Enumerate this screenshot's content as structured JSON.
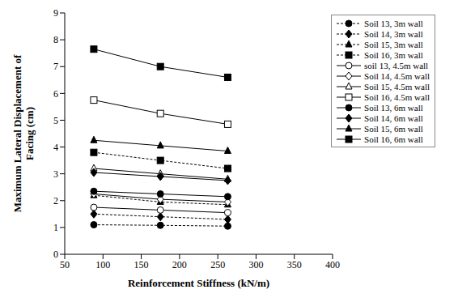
{
  "chart_data": {
    "type": "line",
    "x_label": "Reinforcement Stiffness (kN/m)",
    "y_label": "Maximum Lateral Displacement of Facing (cm)",
    "x": [
      88,
      175,
      263
    ],
    "xlim": [
      50,
      400
    ],
    "xticks": [
      50,
      100,
      150,
      200,
      250,
      300,
      350,
      400
    ],
    "ylim": [
      0,
      9
    ],
    "yticks": [
      0,
      1,
      2,
      3,
      4,
      5,
      6,
      7,
      8,
      9
    ],
    "grid": false,
    "legend": "top-right",
    "series": [
      {
        "name": "Soil 13, 3m wall",
        "color": "#000000",
        "marker": "filled_circle",
        "line_style": "dashed",
        "values": [
          1.1,
          1.08,
          1.05
        ]
      },
      {
        "name": "Soil 14, 3m wall",
        "color": "#000000",
        "marker": "filled_diamond",
        "line_style": "dashed",
        "values": [
          1.5,
          1.4,
          1.3
        ]
      },
      {
        "name": "Soil 15, 3m wall",
        "color": "#000000",
        "marker": "filled_triangle",
        "line_style": "dashed",
        "values": [
          2.2,
          1.95,
          1.85
        ]
      },
      {
        "name": "Soil 16, 3m wall",
        "color": "#000000",
        "marker": "filled_square",
        "line_style": "dashed",
        "values": [
          3.8,
          3.5,
          3.2
        ]
      },
      {
        "name": "soil 13, 4.5m wall",
        "color": "#000000",
        "marker": "open_circle",
        "line_style": "solid",
        "values": [
          1.75,
          1.65,
          1.55
        ]
      },
      {
        "name": "Soil 14, 4.5m wall",
        "color": "#000000",
        "marker": "open_diamond",
        "line_style": "solid",
        "values": [
          2.25,
          2.05,
          1.95
        ]
      },
      {
        "name": "Soil 15, 4.5m wall",
        "color": "#000000",
        "marker": "open_triangle",
        "line_style": "solid",
        "values": [
          3.2,
          3.0,
          2.8
        ]
      },
      {
        "name": "Soil 16, 4.5m wall",
        "color": "#000000",
        "marker": "open_square",
        "line_style": "solid",
        "values": [
          5.75,
          5.25,
          4.85
        ]
      },
      {
        "name": "Soil 13, 6m wall",
        "color": "#000000",
        "marker": "filled_circle",
        "line_style": "solid",
        "values": [
          2.35,
          2.25,
          2.15
        ]
      },
      {
        "name": "Soil 14, 6m wall",
        "color": "#000000",
        "marker": "filled_diamond",
        "line_style": "solid",
        "values": [
          3.05,
          2.9,
          2.75
        ]
      },
      {
        "name": "Soil 15, 6m wall",
        "color": "#000000",
        "marker": "filled_triangle",
        "line_style": "solid",
        "values": [
          4.25,
          4.05,
          3.85
        ]
      },
      {
        "name": "Soil 16, 6m wall",
        "color": "#000000",
        "marker": "filled_square",
        "line_style": "solid",
        "values": [
          7.65,
          7.0,
          6.6
        ]
      }
    ]
  }
}
